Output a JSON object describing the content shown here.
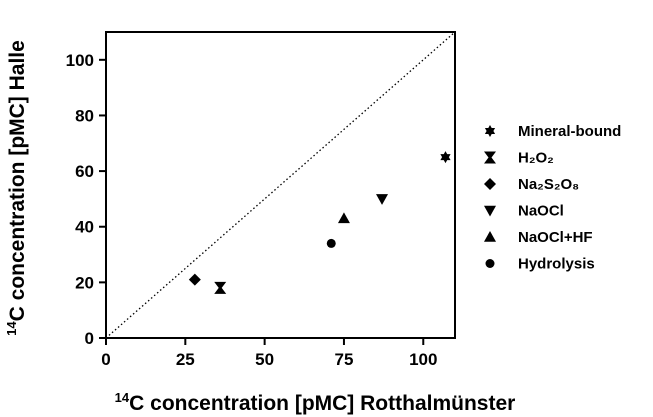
{
  "chart_data": {
    "type": "scatter",
    "xlabel_sup": "14",
    "xlabel": "C concentration [pMC] Rotthalmünster",
    "ylabel_sup": "14",
    "ylabel": "C concentration [pMC] Halle",
    "xlim": [
      0,
      110
    ],
    "ylim": [
      0,
      110
    ],
    "xticks": [
      0,
      25,
      50,
      75,
      100
    ],
    "yticks": [
      0,
      20,
      40,
      60,
      80,
      100
    ],
    "grid": false,
    "legend_position": "right",
    "reference_line": {
      "style": "dotted",
      "from": [
        0,
        0
      ],
      "to": [
        110,
        110
      ]
    },
    "series": [
      {
        "name": "Mineral-bound",
        "marker": "star",
        "points": [
          [
            107,
            65
          ]
        ]
      },
      {
        "name": "H₂O₂",
        "marker": "hourglass",
        "points": [
          [
            36,
            18
          ]
        ]
      },
      {
        "name": "Na₂S₂O₈",
        "marker": "diamond",
        "points": [
          [
            28,
            21
          ]
        ]
      },
      {
        "name": "NaOCl",
        "marker": "triangle-down",
        "points": [
          [
            87,
            50
          ]
        ]
      },
      {
        "name": "NaOCl+HF",
        "marker": "triangle-up",
        "points": [
          [
            75,
            43
          ]
        ]
      },
      {
        "name": "Hydrolysis",
        "marker": "circle",
        "points": [
          [
            71,
            34
          ]
        ]
      }
    ]
  }
}
